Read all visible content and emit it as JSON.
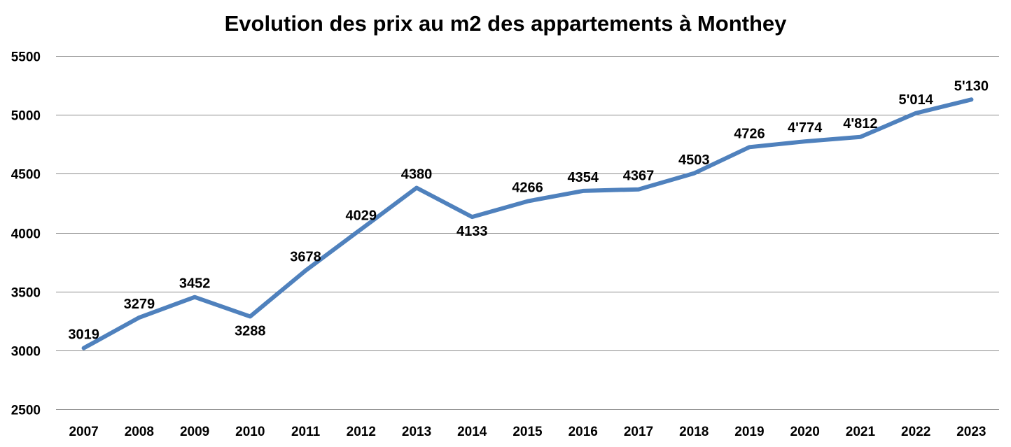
{
  "chart_data": {
    "type": "line",
    "title": "Evolution des prix au m2 des appartements à Monthey",
    "xlabel": "",
    "ylabel": "",
    "categories": [
      "2007",
      "2008",
      "2009",
      "2010",
      "2011",
      "2012",
      "2013",
      "2014",
      "2015",
      "2016",
      "2017",
      "2018",
      "2019",
      "2020",
      "2021",
      "2022",
      "2023"
    ],
    "series": [
      {
        "values": [
          3019,
          3279,
          3452,
          3288,
          3678,
          4029,
          4380,
          4133,
          4266,
          4354,
          4367,
          4503,
          4726,
          4774,
          4812,
          5014,
          5130
        ],
        "data_labels": [
          "3019",
          "3279",
          "3452",
          "3288",
          "3678",
          "4029",
          "4380",
          "4133",
          "4266",
          "4354",
          "4367",
          "4503",
          "4726",
          "4'774",
          "4'812",
          "5'014",
          "5'130"
        ],
        "color": "#4f81bd"
      }
    ],
    "ylim": [
      2500,
      5500
    ],
    "yticks": [
      2500,
      3000,
      3500,
      4000,
      4500,
      5000,
      5500
    ],
    "grid": true,
    "legend": "none"
  }
}
